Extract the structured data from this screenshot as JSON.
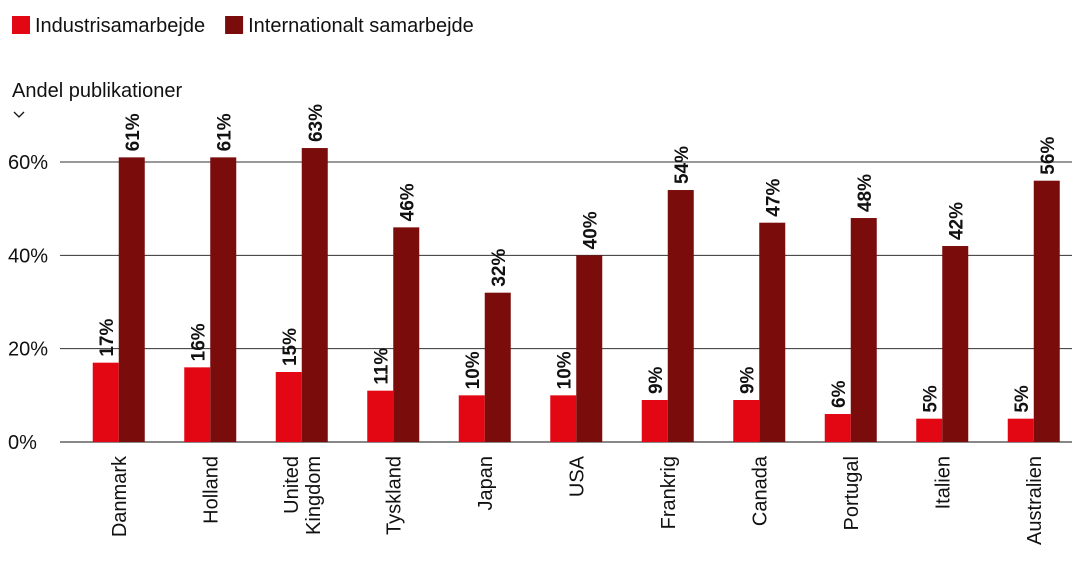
{
  "chart_data": {
    "type": "bar",
    "y_axis_label": "Andel publikationer",
    "categories": [
      "Danmark",
      "Holland",
      "United Kingdom",
      "Tyskland",
      "Japan",
      "USA",
      "Frankrig",
      "Canada",
      "Portugal",
      "Italien",
      "Australien"
    ],
    "series": [
      {
        "name": "Industrisamarbejde",
        "color": "#e30613",
        "values": [
          17,
          16,
          15,
          11,
          10,
          10,
          9,
          9,
          6,
          5,
          5
        ],
        "value_labels": [
          "17%",
          "16%",
          "15%",
          "11%",
          "10%",
          "10%",
          "9%",
          "9%",
          "6%",
          "5%",
          "5%"
        ]
      },
      {
        "name": "Internationalt samarbejde",
        "color": "#7a0c0c",
        "values": [
          61,
          61,
          63,
          46,
          32,
          40,
          54,
          47,
          48,
          42,
          56
        ],
        "value_labels": [
          "61%",
          "61%",
          "63%",
          "46%",
          "32%",
          "40%",
          "54%",
          "47%",
          "48%",
          "42%",
          "56%"
        ]
      }
    ],
    "ylim": [
      0,
      65
    ],
    "yticks": [
      {
        "value": 0,
        "label": "0%"
      },
      {
        "value": 20,
        "label": "20%"
      },
      {
        "value": 40,
        "label": "40%"
      },
      {
        "value": 60,
        "label": "60%"
      }
    ],
    "grid": true,
    "legend": "top-left"
  }
}
